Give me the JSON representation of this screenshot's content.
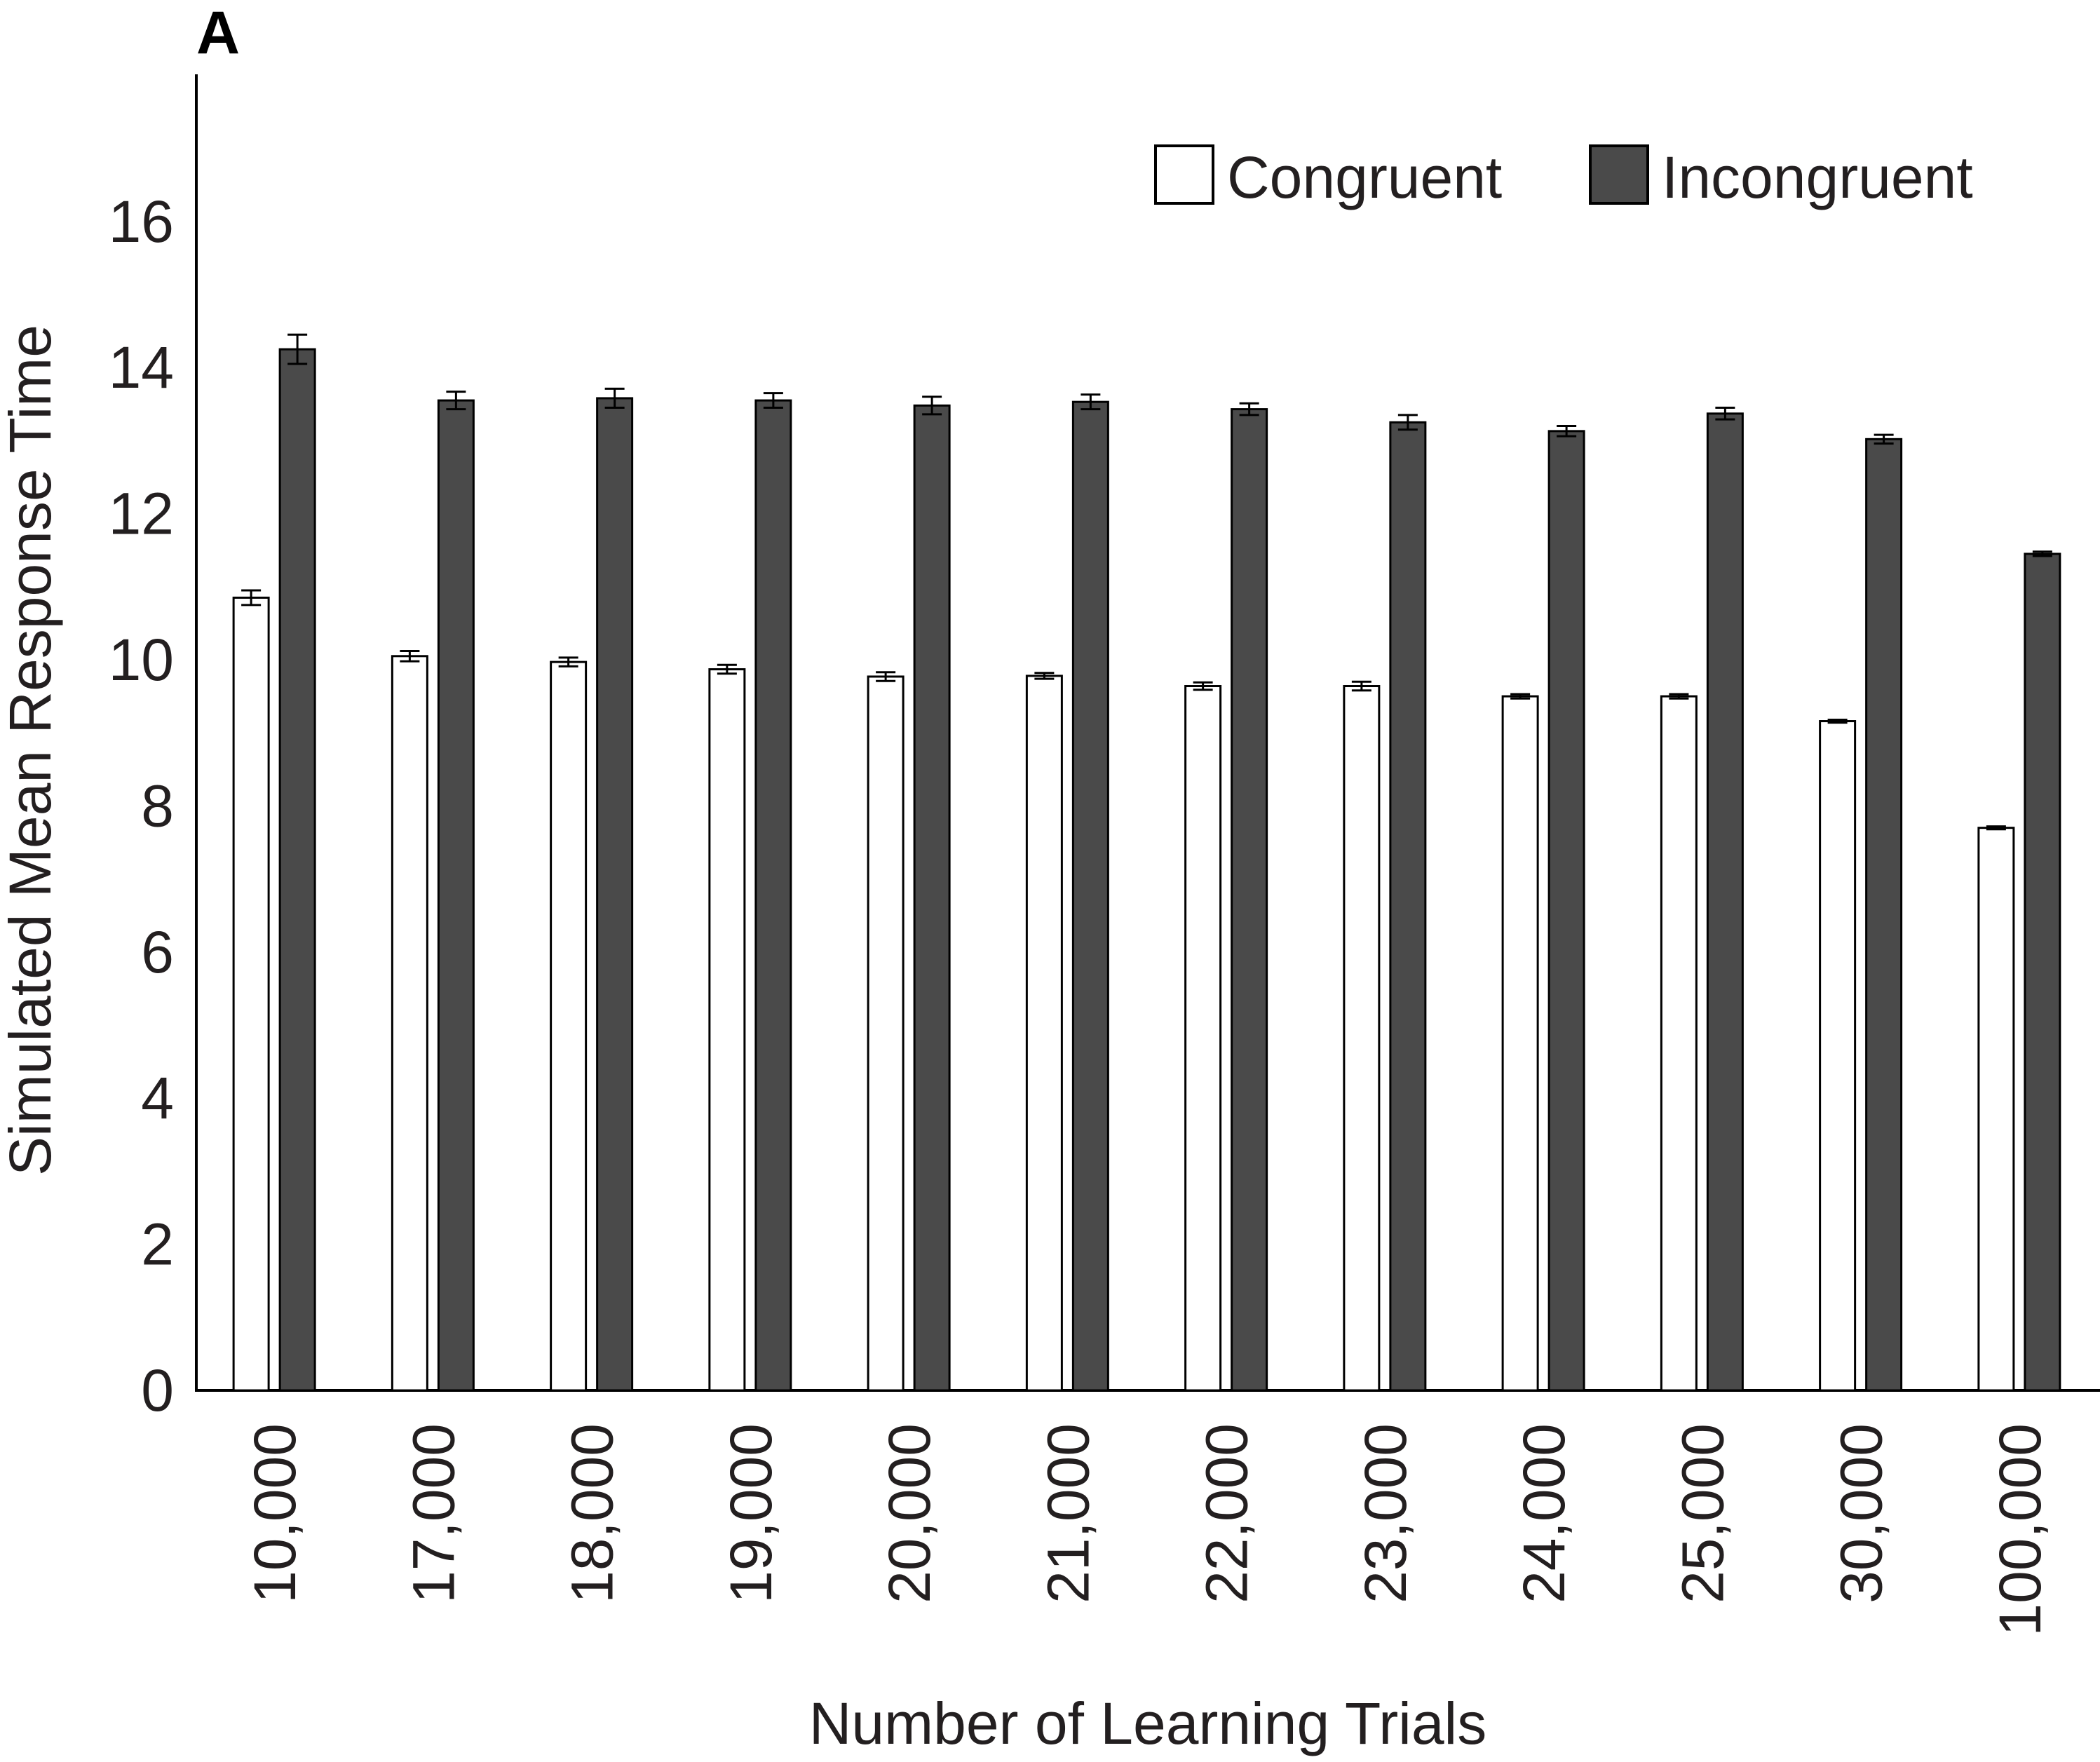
{
  "panel_label": "A",
  "colors": {
    "congruent_fill": "#ffffff",
    "incongruent_fill": "#4a4a4a",
    "outline": "#000000",
    "text": "#231f20"
  },
  "chart_data": {
    "type": "bar",
    "title": "",
    "xlabel": "Number of Learning Trials",
    "ylabel": "Simulated Mean Response Time",
    "categories": [
      "10,000",
      "17,000",
      "18,000",
      "19,000",
      "20,000",
      "21,000",
      "22,000",
      "23,000",
      "24,000",
      "25,000",
      "30,000",
      "100,000"
    ],
    "yticks": [
      "0",
      "2",
      "4",
      "6",
      "8",
      "10",
      "12",
      "14",
      "16"
    ],
    "ylim": [
      0,
      18
    ],
    "grid": false,
    "legend_position": "top-right",
    "series": [
      {
        "name": "Congruent",
        "values": [
          10.85,
          10.05,
          9.97,
          9.87,
          9.77,
          9.78,
          9.64,
          9.64,
          9.5,
          9.5,
          9.16,
          7.7
        ],
        "errors": [
          0.1,
          0.07,
          0.06,
          0.06,
          0.06,
          0.04,
          0.05,
          0.06,
          0.03,
          0.03,
          0.02,
          0.02
        ]
      },
      {
        "name": "Incongruent",
        "values": [
          14.25,
          13.55,
          13.58,
          13.55,
          13.48,
          13.53,
          13.43,
          13.25,
          13.13,
          13.37,
          13.02,
          11.45
        ],
        "errors": [
          0.2,
          0.12,
          0.13,
          0.1,
          0.12,
          0.1,
          0.08,
          0.1,
          0.07,
          0.08,
          0.06,
          0.03
        ]
      }
    ]
  }
}
